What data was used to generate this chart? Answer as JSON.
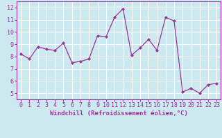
{
  "x": [
    0,
    1,
    2,
    3,
    4,
    5,
    6,
    7,
    8,
    9,
    10,
    11,
    12,
    13,
    14,
    15,
    16,
    17,
    18,
    19,
    20,
    21,
    22,
    23
  ],
  "y": [
    8.2,
    7.8,
    8.8,
    8.6,
    8.5,
    9.1,
    7.5,
    7.6,
    7.8,
    9.7,
    9.6,
    11.2,
    11.9,
    8.1,
    8.7,
    9.4,
    8.5,
    11.2,
    10.9,
    5.1,
    5.4,
    5.0,
    5.7,
    5.8
  ],
  "line_color": "#993399",
  "marker": "D",
  "marker_size": 2.0,
  "line_width": 0.9,
  "xlabel": "Windchill (Refroidissement éolien,°C)",
  "xlabel_fontsize": 6.5,
  "bg_color": "#cce9f0",
  "grid_color": "#ffffff",
  "tick_fontsize": 6.0,
  "tick_color": "#993399",
  "ylim": [
    4.5,
    12.5
  ],
  "xlim": [
    -0.5,
    23.5
  ],
  "yticks": [
    5,
    6,
    7,
    8,
    9,
    10,
    11,
    12
  ],
  "xticks": [
    0,
    1,
    2,
    3,
    4,
    5,
    6,
    7,
    8,
    9,
    10,
    11,
    12,
    13,
    14,
    15,
    16,
    17,
    18,
    19,
    20,
    21,
    22,
    23
  ]
}
